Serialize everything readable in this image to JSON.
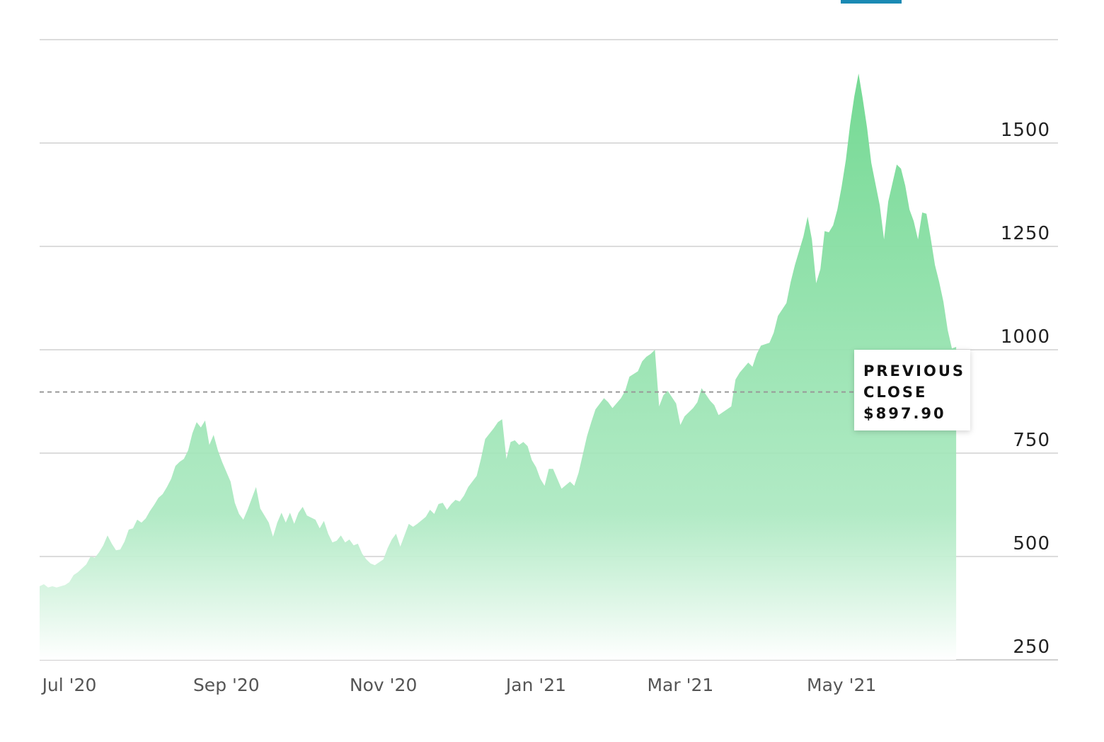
{
  "chart_data": {
    "type": "area",
    "series": [
      {
        "color": "#74d993",
        "x": [
          0,
          1,
          2,
          3,
          4,
          6,
          7,
          8,
          9,
          11,
          12,
          13,
          14,
          15,
          16,
          17,
          18,
          19,
          20,
          21,
          22,
          23,
          24,
          25,
          26,
          27,
          28,
          29,
          30,
          31,
          32,
          33,
          34,
          35,
          36,
          37,
          38,
          39,
          40,
          41,
          42,
          43,
          45,
          46,
          47,
          48,
          49,
          51,
          52,
          54,
          55,
          56,
          57,
          58,
          59,
          60,
          61,
          62,
          63,
          65,
          66,
          67,
          68,
          69,
          70,
          71,
          72,
          73,
          74,
          75,
          76,
          77,
          78,
          79,
          81,
          82,
          83,
          84,
          85,
          87,
          88,
          89,
          91,
          92,
          93,
          94,
          95,
          96,
          97,
          98,
          99,
          100,
          101,
          103,
          104,
          105,
          107,
          108,
          109,
          110,
          111,
          112,
          113,
          114,
          115,
          116,
          117,
          118,
          119,
          120,
          121,
          122,
          123,
          125,
          126,
          127,
          129,
          130,
          131,
          133,
          134,
          135,
          137,
          138,
          139,
          141,
          142,
          143,
          144,
          145,
          146,
          147,
          148,
          150,
          151,
          152,
          154,
          155,
          156,
          158,
          159,
          160,
          162,
          163,
          164,
          165,
          167,
          168,
          169,
          170,
          172,
          173,
          174,
          176,
          177,
          178,
          180,
          181,
          182,
          183,
          184,
          185,
          186,
          187,
          188,
          189,
          190,
          191,
          192,
          193,
          194,
          195,
          196,
          198,
          199,
          200,
          202,
          203,
          204,
          205,
          206,
          207,
          208,
          209,
          210,
          211,
          212,
          213,
          214,
          215,
          216
        ],
        "values": [
          428,
          433,
          425,
          428,
          425,
          431,
          438,
          455,
          462,
          481,
          500,
          497,
          510,
          527,
          551,
          531,
          515,
          517,
          536,
          565,
          568,
          589,
          582,
          592,
          610,
          625,
          642,
          651,
          668,
          688,
          719,
          729,
          736,
          757,
          798,
          825,
          812,
          829,
          770,
          794,
          757,
          729,
          681,
          630,
          603,
          589,
          613,
          668,
          616,
          582,
          548,
          582,
          606,
          582,
          606,
          579,
          606,
          620,
          599,
          589,
          568,
          586,
          555,
          534,
          538,
          551,
          534,
          541,
          527,
          531,
          507,
          493,
          483,
          479,
          493,
          520,
          541,
          555,
          524,
          579,
          572,
          579,
          596,
          613,
          603,
          627,
          630,
          613,
          627,
          637,
          633,
          647,
          668,
          695,
          736,
          784,
          810,
          825,
          832,
          736,
          777,
          781,
          770,
          777,
          767,
          733,
          716,
          688,
          671,
          712,
          712,
          688,
          664,
          681,
          671,
          702,
          791,
          825,
          856,
          883,
          873,
          859,
          883,
          901,
          935,
          948,
          972,
          983,
          990,
          1000,
          863,
          890,
          901,
          870,
          818,
          839,
          859,
          873,
          907,
          877,
          866,
          842,
          856,
          863,
          928,
          945,
          969,
          959,
          990,
          1010,
          1017,
          1041,
          1082,
          1113,
          1164,
          1205,
          1274,
          1322,
          1267,
          1161,
          1195,
          1287,
          1284,
          1301,
          1339,
          1394,
          1459,
          1544,
          1613,
          1668,
          1606,
          1537,
          1452,
          1349,
          1267,
          1359,
          1448,
          1438,
          1397,
          1339,
          1311,
          1267,
          1332,
          1329,
          1270,
          1205,
          1164,
          1116,
          1048,
          1003,
          1007
        ]
      }
    ],
    "xlim": [
      0,
      240
    ],
    "xticks": [
      {
        "value": 7,
        "label": "Jul '20"
      },
      {
        "value": 44,
        "label": "Sep '20"
      },
      {
        "value": 81,
        "label": "Nov '20"
      },
      {
        "value": 117,
        "label": "Jan '21"
      },
      {
        "value": 151,
        "label": "Mar '21"
      },
      {
        "value": 189,
        "label": "May '21"
      }
    ],
    "ylim": [
      250,
      1750
    ],
    "yticks": [
      250,
      500,
      750,
      1000,
      1250,
      1500
    ],
    "grid": true,
    "previous_close": {
      "label": [
        "PREVIOUS",
        "CLOSE"
      ],
      "value": 897.9,
      "value_label": "$897.90"
    }
  }
}
